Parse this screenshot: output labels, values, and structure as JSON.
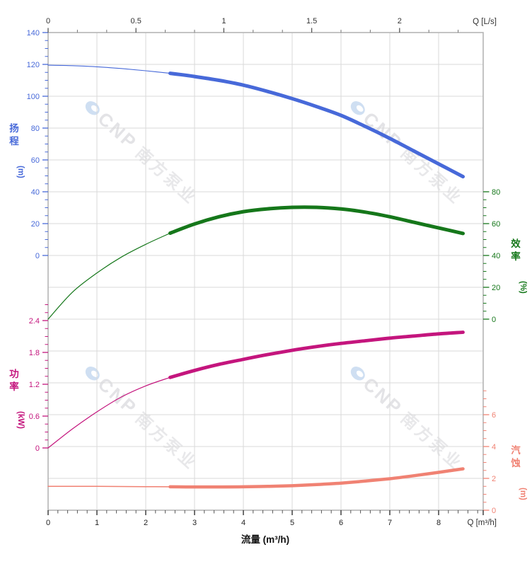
{
  "chart_data": {
    "type": "line",
    "title": "pump performance curves (head / efficiency / power / NPSH vs flow)",
    "x_flow_m3h": [
      0,
      0.5,
      1,
      1.5,
      2,
      2.5,
      3,
      3.5,
      4,
      4.5,
      5,
      5.5,
      6,
      6.5,
      7,
      7.5,
      8,
      8.5
    ],
    "series": [
      {
        "name": "扬程",
        "unit": "m",
        "axis": "head",
        "color": "#4769d9",
        "values": [
          119.5,
          119.2,
          118.5,
          117.4,
          116,
          114.4,
          112.4,
          110,
          107,
          103,
          98.5,
          93.5,
          88,
          81,
          73.5,
          65.5,
          57.5,
          49.5
        ],
        "thin_until_q": 2.5
      },
      {
        "name": "效率",
        "unit": "%",
        "axis": "eff",
        "color": "#15771a",
        "values": [
          0,
          17,
          29,
          39,
          47,
          54,
          59.8,
          64.3,
          67.5,
          69.3,
          70.2,
          70.2,
          69.2,
          67.2,
          64.3,
          60.8,
          57.3,
          53.8
        ],
        "thin_until_q": 2.5
      },
      {
        "name": "功率",
        "unit": "kW",
        "axis": "power",
        "color": "#c4157d",
        "values": [
          0,
          0.36,
          0.68,
          0.96,
          1.17,
          1.33,
          1.46,
          1.575,
          1.67,
          1.76,
          1.84,
          1.91,
          1.97,
          2.02,
          2.07,
          2.11,
          2.15,
          2.18
        ],
        "thin_until_q": 2.5
      },
      {
        "name": "汽蚀",
        "unit": "m",
        "axis": "npsh",
        "color": "#f08273",
        "values": [
          1.5,
          1.5,
          1.5,
          1.49,
          1.48,
          1.47,
          1.46,
          1.46,
          1.47,
          1.5,
          1.54,
          1.61,
          1.7,
          1.83,
          1.98,
          2.17,
          2.38,
          2.6
        ],
        "thin_until_q": 2.5
      }
    ],
    "axes": {
      "top": {
        "label": "Q [L/s]",
        "major": [
          0,
          0.5,
          1,
          1.5,
          2
        ],
        "minor_step": 0.1666667,
        "max": 2.47,
        "color": "#333333"
      },
      "bottom": {
        "label": "Q [m³/h]",
        "xlabel": "流量 (m³/h)",
        "major": [
          0,
          1,
          2,
          3,
          4,
          5,
          6,
          7,
          8
        ],
        "minor_step": 0.2,
        "max": 8.8,
        "color": "#222222"
      },
      "head": {
        "name": "扬程",
        "unit": "(m)",
        "major": [
          0,
          20,
          40,
          60,
          80,
          100,
          120,
          140
        ],
        "minor_step": 5,
        "max": 140,
        "color": "#4769d9",
        "range": [
          0,
          140
        ]
      },
      "eff": {
        "name": "效率",
        "unit": "(%)",
        "major": [
          0,
          20,
          40,
          60,
          80
        ],
        "minor_step": 5,
        "max": 80,
        "color": "#15771a",
        "range": [
          0,
          80
        ]
      },
      "power": {
        "name": "功率",
        "unit": "(kW)",
        "major": [
          0,
          0.6,
          1.2,
          1.8,
          2.4
        ],
        "minor_step": 0.15,
        "max": 2.7,
        "color": "#c4157d",
        "range": [
          0,
          2.4
        ]
      },
      "npsh": {
        "name": "汽蚀",
        "unit": "(m)",
        "major": [
          0,
          2,
          4,
          6
        ],
        "minor_step": 0.5,
        "max": 7.5,
        "color": "#f08273",
        "range": [
          0,
          6
        ]
      }
    },
    "legend_position": "none",
    "grid": true,
    "watermark": {
      "logo_icon": "cnp-eye-logo",
      "brand": "CNP",
      "text": "南方泵业",
      "brand_color": "#e3e3e6",
      "text_color": "#e8e8ea",
      "logo_color": "#cfdff2"
    }
  },
  "colors": {
    "grid": "#dadada",
    "border": "#b5b5b5",
    "background": "#ffffff",
    "head": "#4769d9",
    "efficiency": "#15771a",
    "power": "#c4157d",
    "npsh": "#f08273"
  }
}
